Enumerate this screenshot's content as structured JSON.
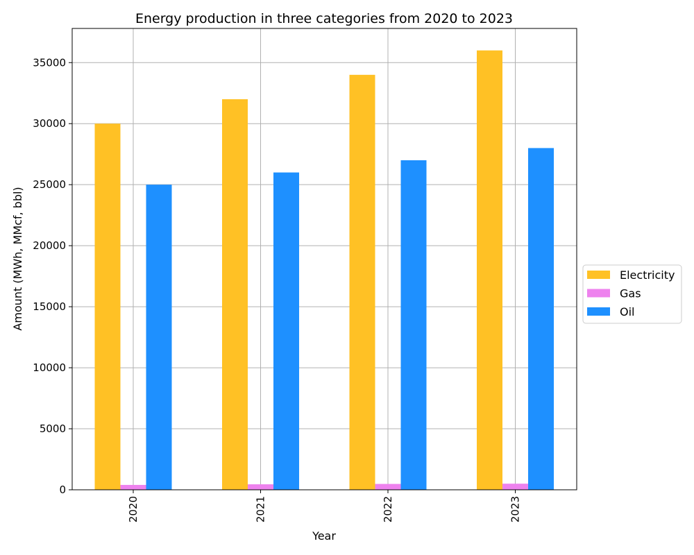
{
  "chart_data": {
    "type": "bar",
    "title": "Energy production in three categories from 2020 to 2023",
    "xlabel": "Year",
    "ylabel": "Amount (MWh, MMcf, bbl)",
    "categories": [
      "2020",
      "2021",
      "2022",
      "2023"
    ],
    "series": [
      {
        "name": "Electricity",
        "color": "#FFC125",
        "values": [
          30000,
          32000,
          34000,
          36000
        ]
      },
      {
        "name": "Gas",
        "color": "#EE82EE",
        "values": [
          400,
          450,
          480,
          500
        ]
      },
      {
        "name": "Oil",
        "color": "#1E90FF",
        "values": [
          25000,
          26000,
          27000,
          28000
        ]
      }
    ],
    "ylim": [
      0,
      37800
    ],
    "yticks": [
      0,
      5000,
      10000,
      15000,
      20000,
      25000,
      30000,
      35000
    ],
    "ytick_labels": [
      "0",
      "5000",
      "10000",
      "15000",
      "20000",
      "25000",
      "30000",
      "35000"
    ],
    "grid": true,
    "legend_position": "center-right-outside",
    "x_tick_rotation": "vertical"
  }
}
